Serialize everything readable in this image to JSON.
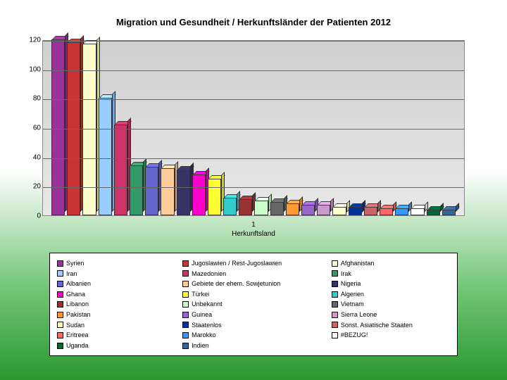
{
  "title": "Migration und Gesundheit / Herkunftsländer der Patienten 2012",
  "chart": {
    "type": "bar",
    "ylim": [
      0,
      120
    ],
    "ytick_step": 20,
    "yticks": [
      0,
      20,
      40,
      60,
      80,
      100,
      120
    ],
    "x_axis_num": "1",
    "x_axis_label": "Herkunftsland",
    "background": "#d8d8d8",
    "grid_color": "#666666",
    "series": [
      {
        "label": "Syrien",
        "value": 120,
        "color": "#993399"
      },
      {
        "label": "Jugoslawien / Rest-Jugoslawien",
        "value": 118,
        "color": "#cc3333"
      },
      {
        "label": "Afghanistan",
        "value": 117,
        "color": "#ffffcc"
      },
      {
        "label": "Iran",
        "value": 80,
        "color": "#99ccff"
      },
      {
        "label": "Mazedonien",
        "value": 62,
        "color": "#cc3366"
      },
      {
        "label": "Irak",
        "value": 34,
        "color": "#339966"
      },
      {
        "label": "Albanien",
        "value": 33,
        "color": "#6666cc"
      },
      {
        "label": "Gebiete der ehem. Sowjetunion",
        "value": 32,
        "color": "#ffcc99"
      },
      {
        "label": "Nigeria",
        "value": 31,
        "color": "#333366"
      },
      {
        "label": "Ghana",
        "value": 28,
        "color": "#ff00cc"
      },
      {
        "label": "Türkei",
        "value": 25,
        "color": "#ffff33"
      },
      {
        "label": "Algerien",
        "value": 12,
        "color": "#33cccc"
      },
      {
        "label": "Libanon",
        "value": 11,
        "color": "#993333"
      },
      {
        "label": "Unbekannt",
        "value": 10,
        "color": "#ccffcc"
      },
      {
        "label": "Vietnam",
        "value": 9,
        "color": "#666666"
      },
      {
        "label": "Pakistan",
        "value": 8,
        "color": "#ff9933"
      },
      {
        "label": "Guinea",
        "value": 7,
        "color": "#9966cc"
      },
      {
        "label": "Sierra Leone",
        "value": 7,
        "color": "#cc99cc"
      },
      {
        "label": "Sudan",
        "value": 6,
        "color": "#ffffcc"
      },
      {
        "label": "Staatenlos",
        "value": 6,
        "color": "#003399"
      },
      {
        "label": "Sonst. Asiatische Staaten",
        "value": 6,
        "color": "#cc6666"
      },
      {
        "label": "Eritreea",
        "value": 5,
        "color": "#ff6666"
      },
      {
        "label": "Marokko",
        "value": 5,
        "color": "#3399ff"
      },
      {
        "label": "#BEZUG!",
        "value": 5,
        "color": "#ffffff"
      },
      {
        "label": "Uganda",
        "value": 4,
        "color": "#006633"
      },
      {
        "label": "Indien",
        "value": 4,
        "color": "#336699"
      }
    ]
  },
  "legend_columns": [
    [
      "Syrien",
      "Iran",
      "Albanien",
      "Ghana",
      "Libanon",
      "Pakistan",
      "Sudan",
      "Eritreea",
      "Uganda"
    ],
    [
      "Jugoslawien / Rest-Jugoslawien",
      "Mazedonien",
      "Gebiete der ehem. Sowjetunion",
      "Türkei",
      "Unbekannt",
      "Guinea",
      "Staatenlos",
      "Marokko",
      "Indien"
    ],
    [
      "Afghanistan",
      "Irak",
      "Nigeria",
      "Algerien",
      "Vietnam",
      "Sierra Leone",
      "Sonst. Asiatische Staaten",
      "#BEZUG!"
    ]
  ],
  "legend_colors": {
    "Syrien": "#993399",
    "Iran": "#99ccff",
    "Albanien": "#6666cc",
    "Ghana": "#ff00cc",
    "Libanon": "#993333",
    "Pakistan": "#ff9933",
    "Sudan": "#ffffcc",
    "Eritreea": "#ff6666",
    "Uganda": "#006633",
    "Jugoslawien / Rest-Jugoslawien": "#cc3333",
    "Mazedonien": "#cc3366",
    "Gebiete der ehem. Sowjetunion": "#ffcc99",
    "Türkei": "#ffff33",
    "Unbekannt": "#ccffcc",
    "Guinea": "#9966cc",
    "Staatenlos": "#003399",
    "Marokko": "#3399ff",
    "Indien": "#336699",
    "Afghanistan": "#ffffcc",
    "Irak": "#339966",
    "Nigeria": "#333366",
    "Algerien": "#33cccc",
    "Vietnam": "#666666",
    "Sierra Leone": "#cc99cc",
    "Sonst. Asiatische Staaten": "#cc6666",
    "#BEZUG!": "#ffffff"
  }
}
